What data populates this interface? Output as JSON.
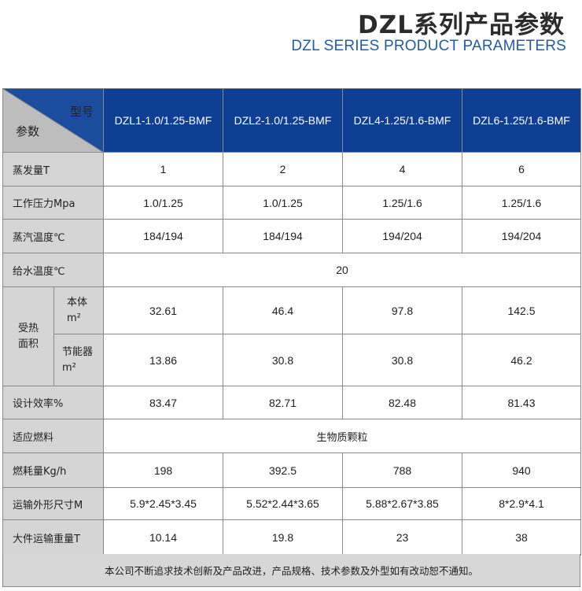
{
  "header": {
    "title_zh": "DZL系列产品参数",
    "title_en": "DZL SERIES PRODUCT PARAMETERS"
  },
  "table": {
    "corner_top": "型号",
    "corner_bottom": "参数",
    "models": [
      "DZL1-1.0/1.25-BMF",
      "DZL2-1.0/1.25-BMF",
      "DZL4-1.25/1.6-BMF",
      "DZL6-1.25/1.6-BMF"
    ],
    "rows": {
      "steam": {
        "label": "蒸发量T",
        "values": [
          "1",
          "2",
          "4",
          "6"
        ]
      },
      "pressure": {
        "label": "工作压力Mpa",
        "values": [
          "1.0/1.25",
          "1.0/1.25",
          "1.25/1.6",
          "1.25/1.6"
        ]
      },
      "steam_temp": {
        "label": "蒸汽温度℃",
        "values": [
          "184/194",
          "184/194",
          "194/204",
          "194/204"
        ]
      },
      "feed_temp": {
        "label": "给水温度℃",
        "value": "20"
      },
      "heating_area": {
        "label_line1": "受热",
        "label_line2": "面积",
        "body": {
          "label_line1": "本体",
          "label_line2": "m²",
          "values": [
            "32.61",
            "46.4",
            "97.8",
            "142.5"
          ]
        },
        "economizer": {
          "label_line1": "节能器",
          "label_line2": "m²",
          "values": [
            "13.86",
            "30.8",
            "30.8",
            "46.2"
          ]
        }
      },
      "efficiency": {
        "label": "设计效率%",
        "values": [
          "83.47",
          "82.71",
          "82.48",
          "81.43"
        ]
      },
      "fuel": {
        "label": "适应燃料",
        "value": "生物质颗粒"
      },
      "consumption": {
        "label": "燃耗量Kg/h",
        "values": [
          "198",
          "392.5",
          "788",
          "940"
        ]
      },
      "dimensions": {
        "label": "运输外形尺寸M",
        "values": [
          "5.9*2.45*3.45",
          "5.52*2.44*3.65",
          "5.88*2.67*3.85",
          "8*2.9*4.1"
        ]
      },
      "weight": {
        "label": "大件运输重量T",
        "values": [
          "10.14",
          "19.8",
          "23",
          "38"
        ]
      }
    }
  },
  "footer": {
    "note": "本公司不断追求技术创新及产品改进，产品规格、技术参数及外型如有改动恕不通知。"
  }
}
